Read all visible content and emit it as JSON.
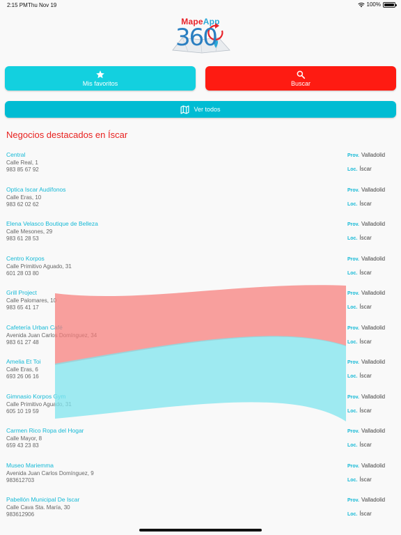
{
  "status": {
    "time": "2:15 PM",
    "date": "Thu Nov 19",
    "battery": "100%"
  },
  "logo": {
    "brand_left": "Mape",
    "brand_right": "App",
    "number": "360"
  },
  "buttons": {
    "favorites": "Mis favoritos",
    "search": "Buscar",
    "view_all": "Ver todos"
  },
  "section_title": "Negocios destacados en Íscar",
  "labels": {
    "prov": "Prov.",
    "loc": "Loc."
  },
  "businesses": [
    {
      "name": "Central",
      "address": "Calle Real, 1",
      "phone": "983 85 67 92",
      "province": "Valladolid",
      "locality": "Íscar"
    },
    {
      "name": "Optica Iscar Audífonos",
      "address": "Calle Eras, 10",
      "phone": "983 62 02 62",
      "province": "Valladolid",
      "locality": "Íscar"
    },
    {
      "name": "Elena Velasco Boutique de Belleza",
      "address": "Calle Mesones, 29",
      "phone": "983 61 28 53",
      "province": "Valladolid",
      "locality": "Íscar"
    },
    {
      "name": "Centro Korpos",
      "address": "Calle Primitivo Aguado, 31",
      "phone": "601 28 03 80",
      "province": "Valladolid",
      "locality": "Íscar"
    },
    {
      "name": "Grill Project",
      "address": "Calle Palomares, 10",
      "phone": "983 65 41 17",
      "province": "Valladolid",
      "locality": "Íscar"
    },
    {
      "name": "Cafetería Urban Café",
      "address": "Avenida Juan Carlos Domínguez, 34",
      "phone": "983 61 27 48",
      "province": "Valladolid",
      "locality": "Íscar"
    },
    {
      "name": "Amelia Et Toi",
      "address": "Calle Eras, 6",
      "phone": "693 26 06 16",
      "province": "Valladolid",
      "locality": "Íscar"
    },
    {
      "name": "Gimnasio Korpos Gym",
      "address": "Calle Primitivo Aguado, 31",
      "phone": "605 10 19 59",
      "province": "Valladolid",
      "locality": "Íscar"
    },
    {
      "name": "Carmen Rico Ropa del Hogar",
      "address": "Calle Mayor, 8",
      "phone": "659 43 23 83",
      "province": "Valladolid",
      "locality": "Íscar"
    },
    {
      "name": "Museo Mariemma",
      "address": "Avenida Juan Carlos Domínguez, 9",
      "phone": "983612703",
      "province": "Valladolid",
      "locality": "Íscar"
    },
    {
      "name": "Pabellón Municipal De Iscar",
      "address": "Calle Cava Sta. María, 30",
      "phone": "983612906",
      "province": "Valladolid",
      "locality": "Íscar"
    }
  ],
  "colors": {
    "favorites": "#13d0df",
    "search": "#fe1b12",
    "view_all": "#00bcd3",
    "title": "#e8211f",
    "link": "#14b9d6",
    "band_red": "#f77b78",
    "band_cyan": "#7fe4ee"
  }
}
